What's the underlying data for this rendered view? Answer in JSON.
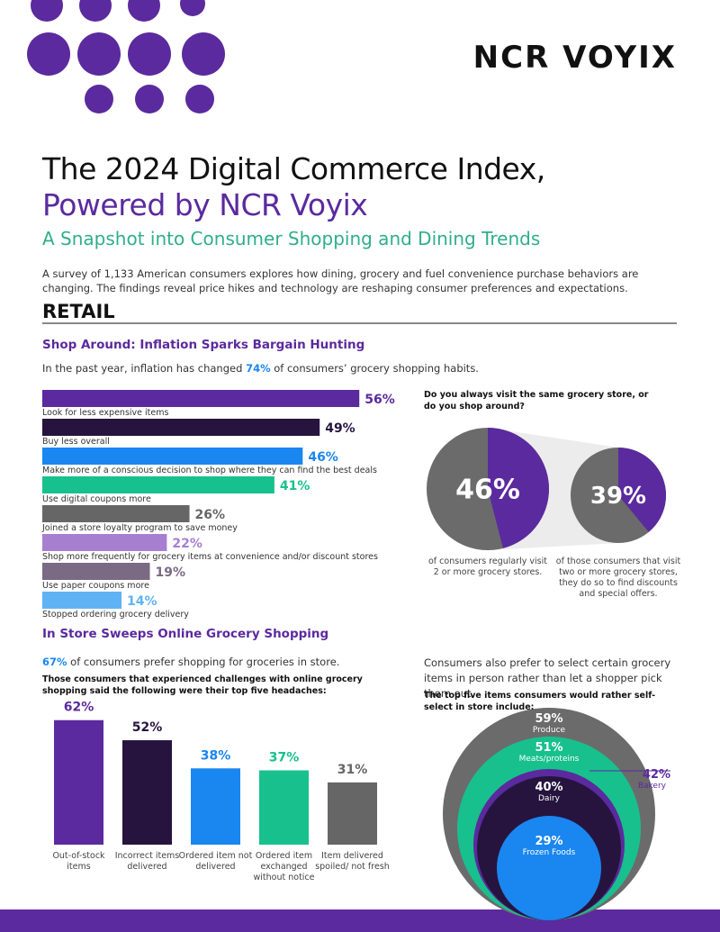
{
  "logo": "NCR VOYIX",
  "title": [
    "The 2024 Digital Commerce Index,",
    "Powered by NCR Voyix"
  ],
  "subtitle": "A Snapshot into Consumer Shopping and Dining Trends",
  "intro": "A survey of 1,133 American consumers explores how dining, grocery and fuel convenience purchase behaviors are changing. The findings reveal price hikes and technology are reshaping consumer preferences and expectations.",
  "section": "RETAIL",
  "blocks": [
    {
      "heading": "Shop Around: Inflation Sparks Bargain Hunting",
      "lead": [
        "In the past year, inflation has changed ",
        "74%",
        " of consumers’ grocery shopping habits."
      ]
    },
    {
      "heading": "In Store Sweeps Online Grocery Shopping",
      "lead": [
        "67%",
        " of consumers prefer shopping for groceries in store."
      ]
    }
  ],
  "chart_data": [
    {
      "type": "hbar",
      "categories": [
        "Look for less expensive items",
        "Buy less overall",
        "Make more of a conscious decision to shop where they can find the best deals",
        "Use digital coupons more",
        "Joined a store loyalty program to save money",
        "Shop more frequently for grocery items at convenience and/or discount stores",
        "Use paper coupons more",
        "Stopped ordering grocery delivery"
      ],
      "values": [
        56,
        49,
        46,
        41,
        26,
        22,
        19,
        14
      ],
      "value_labels": [
        "56%",
        "49%",
        "46%",
        "41%",
        "26%",
        "22%",
        "19%",
        "14%"
      ],
      "colors": [
        "#5b2a9e",
        "#26143f",
        "#1a86f0",
        "#18c08d",
        "#666666",
        "#a77fd1",
        "#7a6a84",
        "#5fb3f5"
      ]
    },
    {
      "type": "pie",
      "title": "Do you always visit the same grocery store, or do you shop around?",
      "values": [
        46,
        39
      ],
      "value_labels": [
        "46%",
        "39%"
      ],
      "captions": [
        "of consumers regularly visit 2 or more grocery stores.",
        "of those consumers that visit two or more grocery stores, they do so to find discounts and special offers."
      ],
      "color": "#5b2a9e",
      "rest_color": "#6b6b6b"
    },
    {
      "type": "bar",
      "title": "Those consumers that experienced challenges with online grocery shopping said the following were their top five headaches:",
      "categories": [
        "Out-of-stock items",
        "Incorrect items delivered",
        "Ordered item not delivered",
        "Ordered item exchanged without notice",
        "Item delivered spoiled/ not fresh"
      ],
      "values": [
        62,
        52,
        38,
        37,
        31
      ],
      "value_labels": [
        "62%",
        "52%",
        "38%",
        "37%",
        "31%"
      ],
      "colors": [
        "#5b2a9e",
        "#26143f",
        "#1a86f0",
        "#18c08d",
        "#666666"
      ]
    },
    {
      "type": "nested-circles",
      "intro": "Consumers also prefer to select certain grocery items in person rather than let a shopper pick them out.",
      "title": "The top five items consumers would rather self-select in store include:",
      "categories": [
        "Produce",
        "Meats/proteins",
        "Bakery",
        "Dairy",
        "Frozen Foods"
      ],
      "values": [
        59,
        51,
        42,
        40,
        29
      ],
      "value_labels": [
        "59%",
        "51%",
        "42%",
        "40%",
        "29%"
      ],
      "colors": [
        "#6b6b6b",
        "#18c08d",
        "#5b2a9e",
        "#26143f",
        "#1a86f0"
      ]
    }
  ]
}
